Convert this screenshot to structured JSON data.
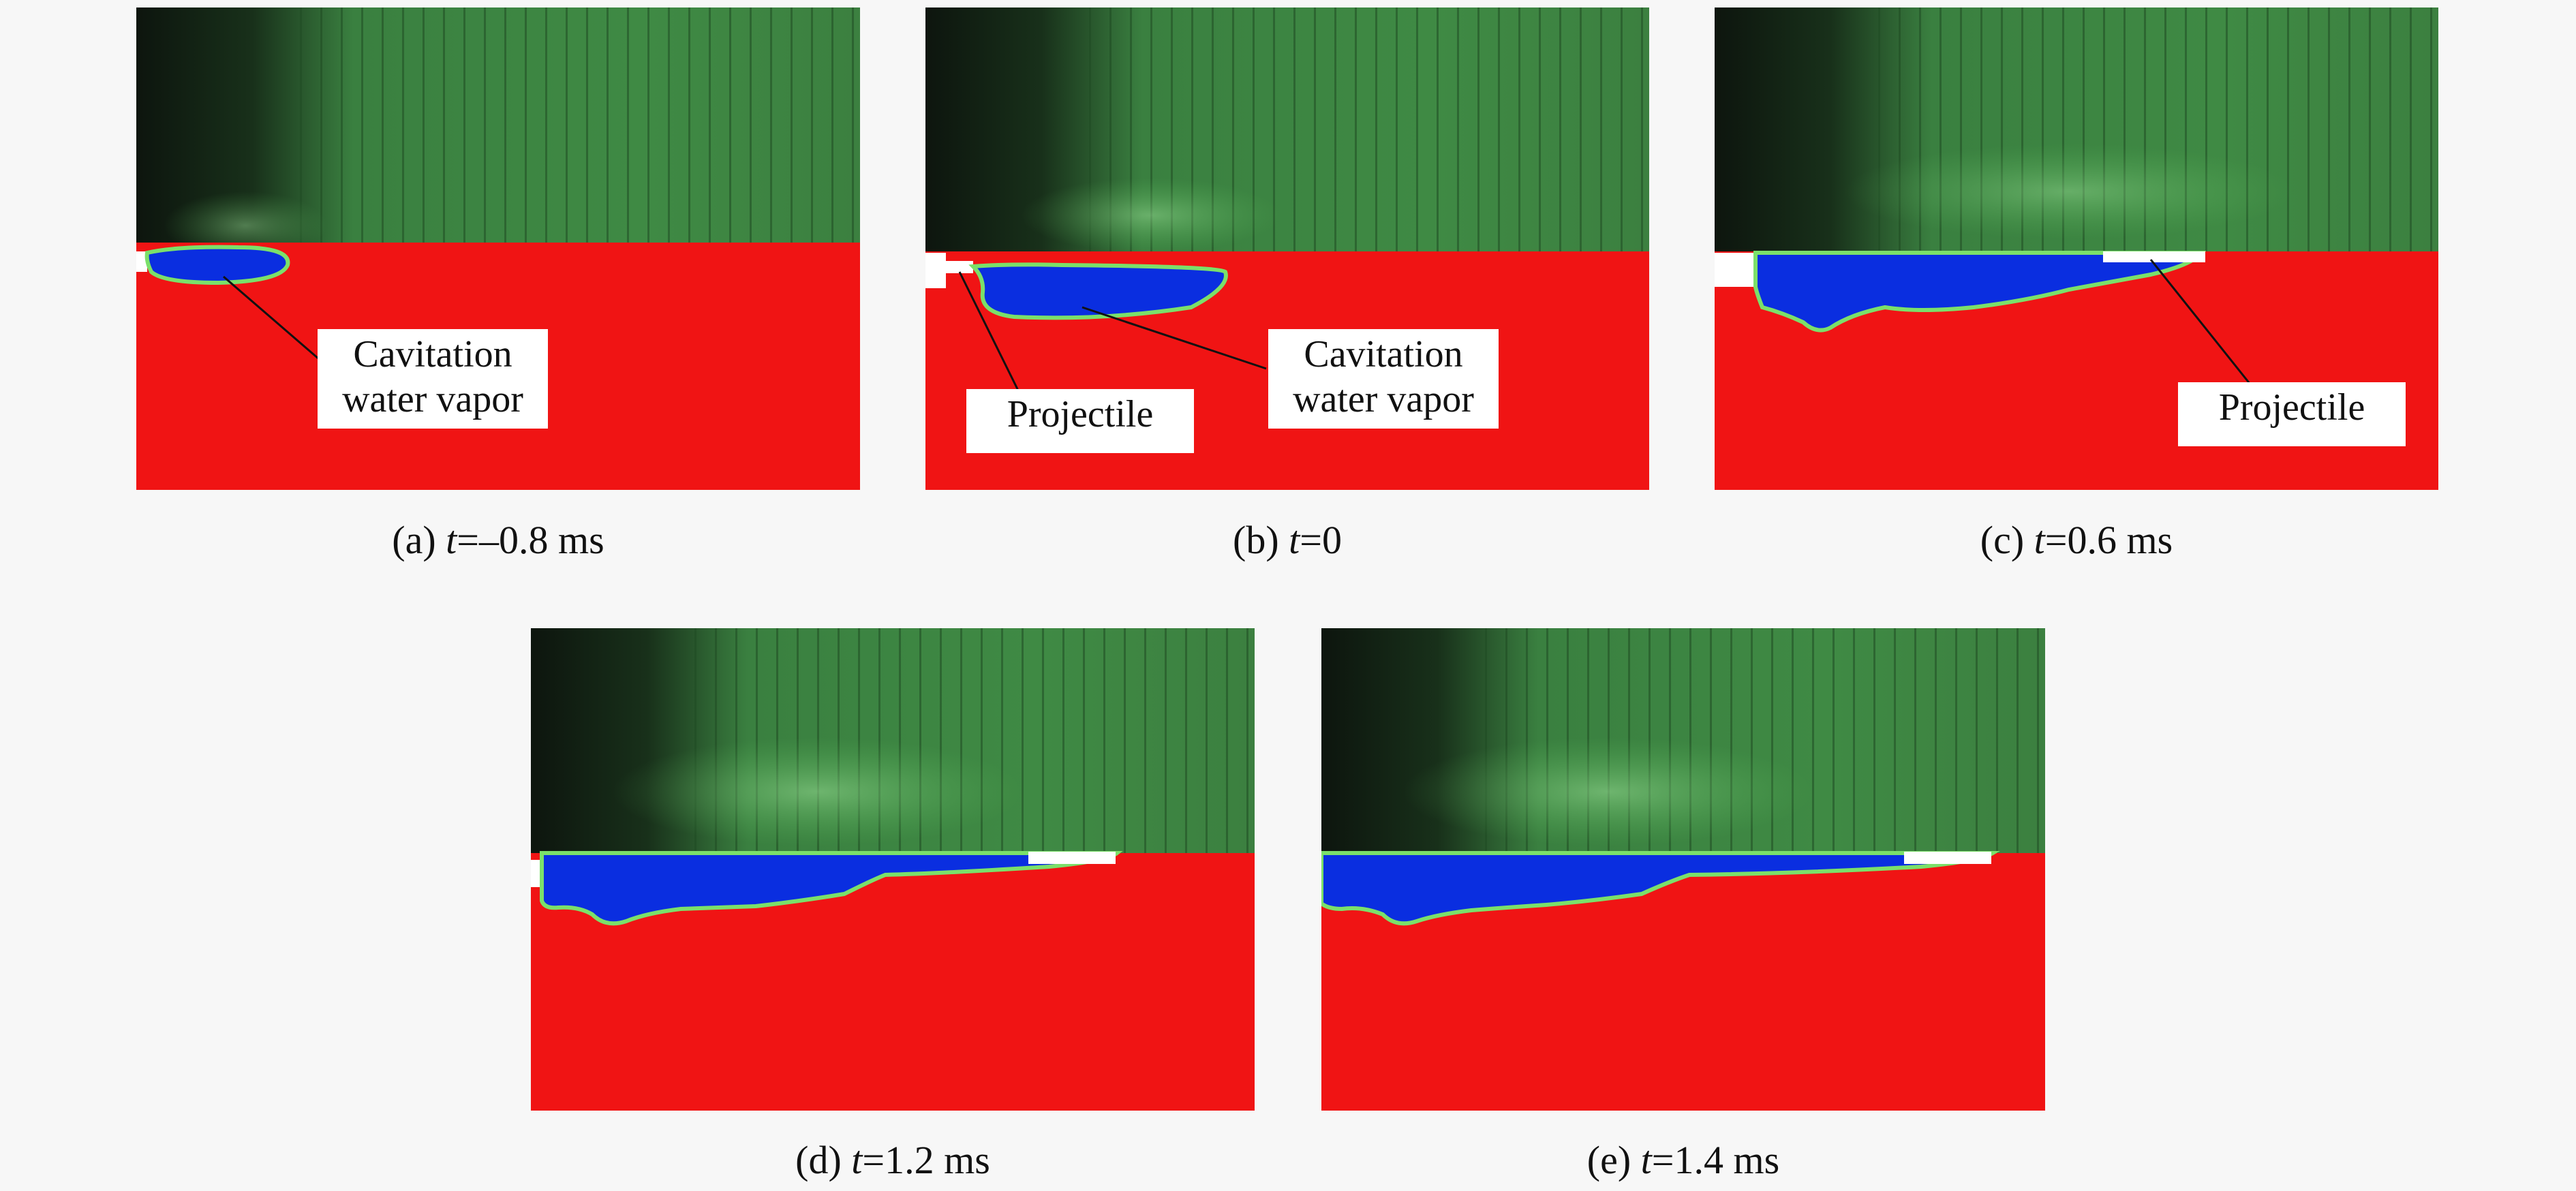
{
  "figure": {
    "panels": [
      {
        "id": "a",
        "caption": {
          "prefix": "(a) ",
          "var": "t",
          "rest": "=–0.8 ms"
        }
      },
      {
        "id": "b",
        "caption": {
          "prefix": "(b) ",
          "var": "t",
          "rest": "=0"
        }
      },
      {
        "id": "c",
        "caption": {
          "prefix": "(c) ",
          "var": "t",
          "rest": "=0.6 ms"
        }
      },
      {
        "id": "d",
        "caption": {
          "prefix": "(d) ",
          "var": "t",
          "rest": "=1.2 ms"
        }
      },
      {
        "id": "e",
        "caption": {
          "prefix": "(e) ",
          "var": "t",
          "rest": "=1.4 ms"
        }
      }
    ],
    "annotations": {
      "cavitation_line1": "Cavitation",
      "cavitation_line2": "water vapor",
      "projectile": "Projectile"
    },
    "colors": {
      "water": "#f01414",
      "vapor": "#0a2ee0",
      "interface": "#7be06a",
      "air_dark": "#0f1a10",
      "air_green": "#3f8f45",
      "projectile": "#ffffff"
    }
  }
}
